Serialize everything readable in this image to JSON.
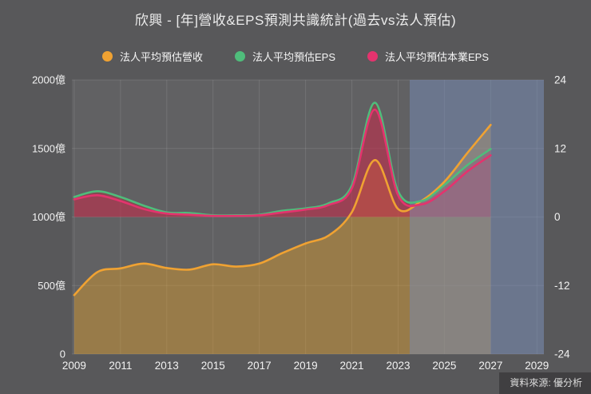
{
  "page": {
    "title": "欣興 - [年]營收&EPS預測共識統計(過去vs法人預估)",
    "source": "資料來源: 優分析"
  },
  "colors": {
    "background": "#58585a",
    "plot_bg": "#616163",
    "grid": "rgba(255,255,255,0.11)",
    "text": "#f2f2f2",
    "footer_bg": "#403f41",
    "revenue": "#f0a232",
    "eps": "#4fbd7b",
    "core_eps": "#e4336e",
    "forecast_overlay": "rgba(118,140,183,0.50)"
  },
  "chart_data": {
    "type": "line",
    "title": "欣興 - [年]營收&EPS預測共識統計(過去vs法人預估)",
    "x": [
      2009,
      2010,
      2011,
      2012,
      2013,
      2014,
      2015,
      2016,
      2017,
      2018,
      2019,
      2020,
      2021,
      2022,
      2023,
      2024,
      2025,
      2026,
      2027
    ],
    "series": [
      {
        "name": "法人平均預估營收",
        "axis": "left",
        "unit": "億",
        "color": "#f0a232",
        "fill": "rgba(235,163,35,0.40)",
        "baseline": 0,
        "values": [
          430,
          598,
          625,
          660,
          628,
          616,
          655,
          638,
          660,
          737,
          807,
          865,
          1035,
          1415,
          1058,
          1117,
          1257,
          1468,
          1672
        ]
      },
      {
        "name": "法人平均預估EPS",
        "axis": "right",
        "unit": "",
        "color": "#4fbd7b",
        "fill": "rgba(172,48,62,0.45)",
        "baseline": 0,
        "values": [
          3.5,
          4.5,
          3.5,
          2.0,
          0.8,
          0.7,
          0.3,
          0.3,
          0.4,
          1.1,
          1.5,
          2.4,
          5.5,
          20.0,
          4.5,
          2.8,
          5.6,
          9.1,
          11.9
        ]
      },
      {
        "name": "法人平均預估本業EPS",
        "axis": "right",
        "unit": "",
        "color": "#e4336e",
        "fill": "rgba(215,40,90,0.28)",
        "baseline": 0,
        "values": [
          3.1,
          3.8,
          2.8,
          1.4,
          0.6,
          0.4,
          0.2,
          0.2,
          0.3,
          0.8,
          1.3,
          2.1,
          5.0,
          18.8,
          3.8,
          2.2,
          4.5,
          8.0,
          10.8
        ]
      }
    ],
    "x_axis": {
      "min": 2008.9,
      "max": 2029.3,
      "tick_values": [
        2009,
        2011,
        2013,
        2015,
        2017,
        2019,
        2021,
        2023,
        2025,
        2027,
        2029
      ],
      "tick_labels": [
        "2009",
        "2011",
        "2013",
        "2015",
        "2017",
        "2019",
        "2021",
        "2023",
        "2025",
        "2027",
        "2029"
      ]
    },
    "left_axis": {
      "min": 0,
      "max": 2000,
      "tick_values": [
        0,
        500,
        1000,
        1500,
        2000
      ],
      "tick_labels": [
        "0",
        "500億",
        "1000億",
        "1500億",
        "2000億"
      ]
    },
    "right_axis": {
      "min": -24,
      "max": 24,
      "tick_values": [
        -24,
        -12,
        0,
        12,
        24
      ],
      "tick_labels": [
        "-24",
        "-12",
        "0",
        "12",
        "24"
      ]
    },
    "forecast": {
      "start": 2023.5,
      "end": 2029.3,
      "color": "rgba(118,140,183,0.50)"
    },
    "grid": true,
    "legend_position": "top"
  }
}
